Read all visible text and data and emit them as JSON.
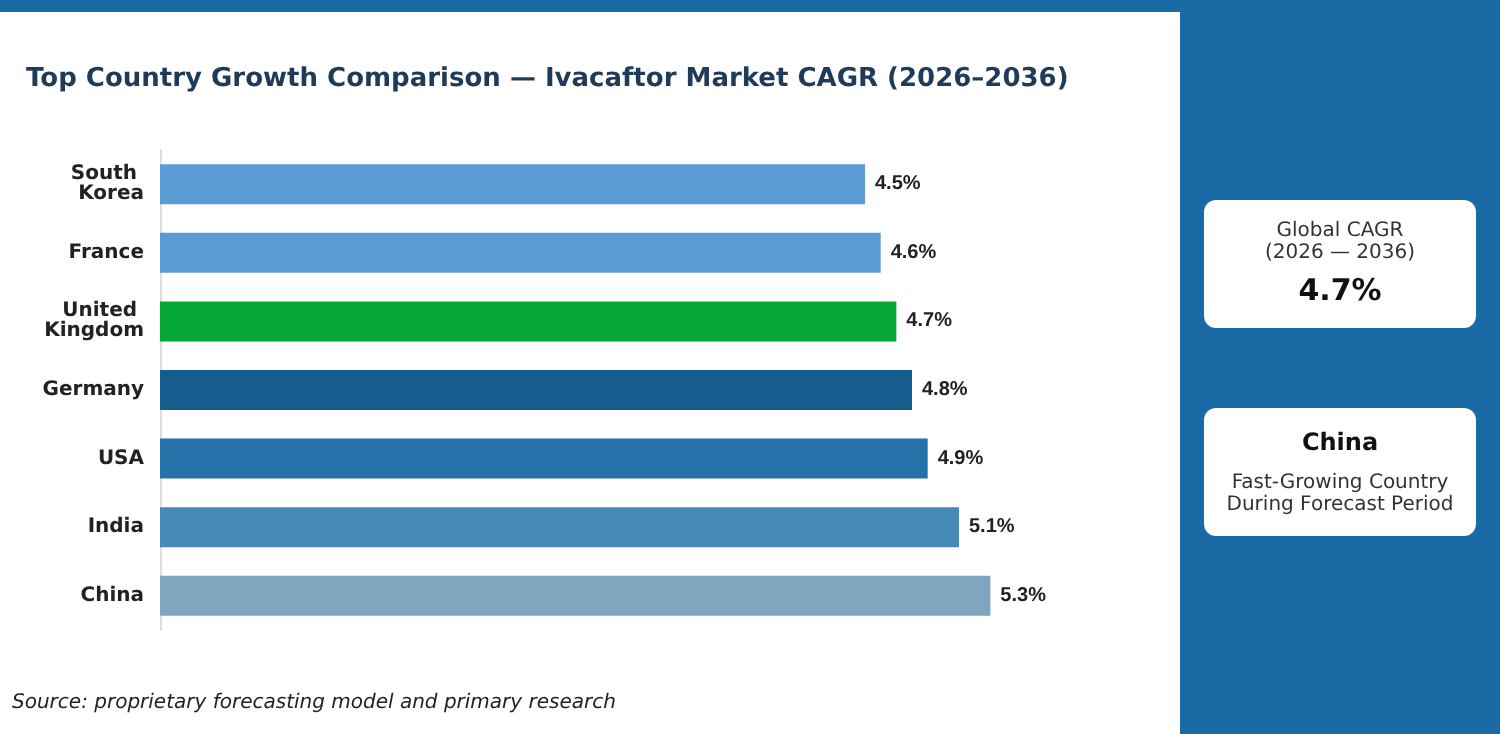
{
  "chart_data": {
    "type": "bar",
    "orientation": "horizontal",
    "title": "Top Country Growth Comparison — Ivacaftor Market CAGR (2026–2036)",
    "categories": [
      "South Korea",
      "France",
      "United Kingdom",
      "Germany",
      "USA",
      "India",
      "China"
    ],
    "values": [
      4.5,
      4.6,
      4.7,
      4.8,
      4.9,
      5.1,
      5.3
    ],
    "colors": [
      "#5b9bd5",
      "#5b9bd5",
      "#05a834",
      "#155c8f",
      "#2673ab",
      "#4689b6",
      "#7fa6bf"
    ],
    "value_labels": [
      "4.5%",
      "4.6%",
      "4.7%",
      "4.8%",
      "4.9%",
      "5.1%",
      "5.3%"
    ],
    "grid": false,
    "annotations": [
      "Global CAGR",
      "(2026 — 2036)",
      "4.7%",
      "China",
      "Fast-Growing Country During Forecast Period",
      "Source: proprietary forecasting model and primary research"
    ]
  }
}
